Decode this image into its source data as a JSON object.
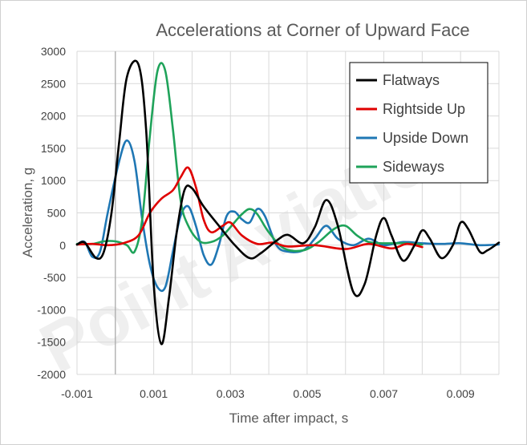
{
  "chart_data": {
    "type": "line",
    "title": "Accelerations at Corner of Upward Face",
    "xlabel": "Time after impact, s",
    "ylabel": "Acceleration, g",
    "xlim": [
      -0.001,
      0.01
    ],
    "ylim": [
      -2000,
      3000
    ],
    "x_ticks": [
      -0.001,
      0,
      0.001,
      0.002,
      0.003,
      0.004,
      0.005,
      0.006,
      0.007,
      0.008,
      0.009,
      0.01
    ],
    "x_tick_labels": [
      "-0.001",
      "0.001",
      "0.003",
      "0.005",
      "0.007",
      "0.009"
    ],
    "x_tick_label_values": [
      -0.001,
      0.001,
      0.003,
      0.005,
      0.007,
      0.009
    ],
    "y_ticks": [
      -2000,
      -1500,
      -1000,
      -500,
      0,
      500,
      1000,
      1500,
      2000,
      2500,
      3000
    ],
    "y_tick_labels": [
      "-2000",
      "-1500",
      "-1000",
      "-500",
      "0",
      "500",
      "1000",
      "1500",
      "2000",
      "2500",
      "3000"
    ],
    "grid": true,
    "legend_position": "top-right",
    "series": [
      {
        "name": "Flatways",
        "color": "#000000",
        "points": [
          [
            -0.001,
            10
          ],
          [
            -0.0008,
            40
          ],
          [
            -0.0005,
            -200
          ],
          [
            -0.0003,
            -100
          ],
          [
            -0.0001,
            500
          ],
          [
            0.0001,
            1600
          ],
          [
            0.0003,
            2600
          ],
          [
            0.0006,
            2800
          ],
          [
            0.0008,
            1800
          ],
          [
            0.001,
            -600
          ],
          [
            0.0012,
            -1530
          ],
          [
            0.0014,
            -800
          ],
          [
            0.0016,
            200
          ],
          [
            0.0018,
            850
          ],
          [
            0.002,
            880
          ],
          [
            0.0023,
            600
          ],
          [
            0.0027,
            300
          ],
          [
            0.0031,
            10
          ],
          [
            0.0035,
            -200
          ],
          [
            0.0038,
            -120
          ],
          [
            0.0042,
            70
          ],
          [
            0.0045,
            160
          ],
          [
            0.0049,
            30
          ],
          [
            0.0052,
            280
          ],
          [
            0.0055,
            700
          ],
          [
            0.0058,
            300
          ],
          [
            0.0062,
            -720
          ],
          [
            0.0065,
            -600
          ],
          [
            0.0068,
            150
          ],
          [
            0.007,
            420
          ],
          [
            0.0072,
            150
          ],
          [
            0.0075,
            -240
          ],
          [
            0.0078,
            0
          ],
          [
            0.008,
            230
          ],
          [
            0.0082,
            100
          ],
          [
            0.0085,
            -200
          ],
          [
            0.0088,
            0
          ],
          [
            0.009,
            350
          ],
          [
            0.0092,
            250
          ],
          [
            0.0095,
            -100
          ],
          [
            0.0097,
            -80
          ],
          [
            0.01,
            40
          ]
        ]
      },
      {
        "name": "Rightside Up",
        "color": "#e00000",
        "points": [
          [
            -0.001,
            10
          ],
          [
            -0.0006,
            20
          ],
          [
            -0.0002,
            0
          ],
          [
            0.0002,
            30
          ],
          [
            0.0006,
            150
          ],
          [
            0.0009,
            500
          ],
          [
            0.0012,
            720
          ],
          [
            0.0015,
            850
          ],
          [
            0.0017,
            1050
          ],
          [
            0.0019,
            1200
          ],
          [
            0.0021,
            900
          ],
          [
            0.0023,
            400
          ],
          [
            0.0025,
            200
          ],
          [
            0.0028,
            300
          ],
          [
            0.003,
            350
          ],
          [
            0.0033,
            150
          ],
          [
            0.0037,
            20
          ],
          [
            0.0041,
            40
          ],
          [
            0.0045,
            -20
          ],
          [
            0.0052,
            0
          ],
          [
            0.006,
            -60
          ],
          [
            0.0066,
            20
          ],
          [
            0.0072,
            -50
          ],
          [
            0.0076,
            20
          ],
          [
            0.008,
            -30
          ]
        ]
      },
      {
        "name": "Upside Down",
        "color": "#1f77b4",
        "points": [
          [
            -0.001,
            10
          ],
          [
            -0.0008,
            50
          ],
          [
            -0.0006,
            -180
          ],
          [
            -0.0004,
            -100
          ],
          [
            -0.0002,
            500
          ],
          [
            0.0001,
            1300
          ],
          [
            0.0003,
            1620
          ],
          [
            0.0005,
            1300
          ],
          [
            0.0007,
            400
          ],
          [
            0.0009,
            -300
          ],
          [
            0.0011,
            -650
          ],
          [
            0.0013,
            -650
          ],
          [
            0.0015,
            -100
          ],
          [
            0.0017,
            450
          ],
          [
            0.0019,
            600
          ],
          [
            0.0021,
            300
          ],
          [
            0.0023,
            -150
          ],
          [
            0.0025,
            -300
          ],
          [
            0.0027,
            0
          ],
          [
            0.0029,
            450
          ],
          [
            0.0031,
            520
          ],
          [
            0.0033,
            400
          ],
          [
            0.0035,
            350
          ],
          [
            0.0037,
            560
          ],
          [
            0.0039,
            450
          ],
          [
            0.0042,
            0
          ],
          [
            0.0045,
            -100
          ],
          [
            0.0049,
            -80
          ],
          [
            0.0052,
            100
          ],
          [
            0.0055,
            300
          ],
          [
            0.0058,
            100
          ],
          [
            0.0062,
            0
          ],
          [
            0.0066,
            100
          ],
          [
            0.007,
            0
          ],
          [
            0.0075,
            50
          ],
          [
            0.008,
            30
          ],
          [
            0.0085,
            20
          ],
          [
            0.009,
            30
          ],
          [
            0.0095,
            0
          ],
          [
            0.01,
            10
          ]
        ]
      },
      {
        "name": "Sideways",
        "color": "#1fa35a",
        "points": [
          [
            -0.001,
            20
          ],
          [
            -0.0006,
            20
          ],
          [
            -0.0003,
            60
          ],
          [
            0.0,
            60
          ],
          [
            0.0003,
            0
          ],
          [
            0.0005,
            -100
          ],
          [
            0.0007,
            400
          ],
          [
            0.0009,
            1700
          ],
          [
            0.0011,
            2700
          ],
          [
            0.0013,
            2700
          ],
          [
            0.0015,
            1800
          ],
          [
            0.0017,
            700
          ],
          [
            0.0019,
            300
          ],
          [
            0.0022,
            60
          ],
          [
            0.0025,
            50
          ],
          [
            0.0028,
            150
          ],
          [
            0.0031,
            350
          ],
          [
            0.0033,
            480
          ],
          [
            0.0035,
            560
          ],
          [
            0.0037,
            480
          ],
          [
            0.004,
            200
          ],
          [
            0.0044,
            -50
          ],
          [
            0.0049,
            -80
          ],
          [
            0.0053,
            50
          ],
          [
            0.0057,
            250
          ],
          [
            0.006,
            300
          ],
          [
            0.0063,
            150
          ],
          [
            0.0066,
            50
          ],
          [
            0.007,
            30
          ],
          [
            0.0075,
            30
          ],
          [
            0.008,
            10
          ]
        ]
      }
    ]
  },
  "watermark": "Point Aviation"
}
